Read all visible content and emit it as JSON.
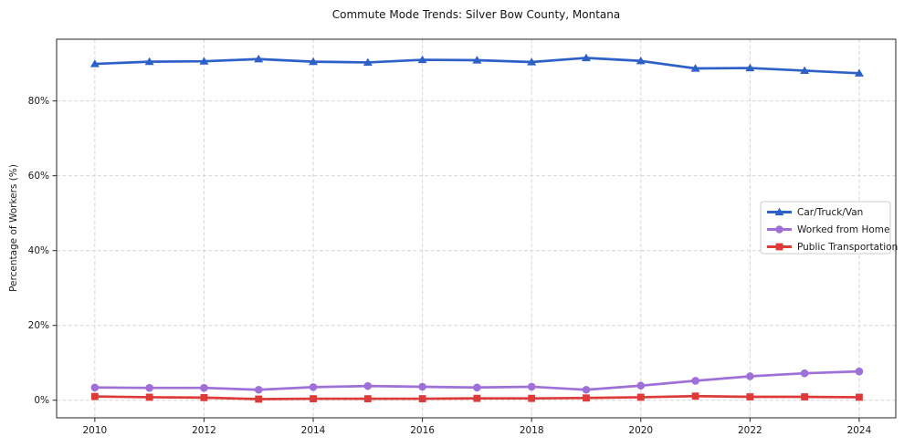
{
  "title": "Commute Mode Trends: Silver Bow County, Montana",
  "colors": {
    "car_truck_van": "#2d61c8",
    "worked_from_home": "#9e70d8",
    "public_transportation": "#dd3a3a",
    "grid": "#d6d6d6",
    "spine": "#262626",
    "legend_border": "#cccccc",
    "background": "#ffffff"
  },
  "chart_data": {
    "type": "line",
    "title": "Commute Mode Trends: Silver Bow County, Montana",
    "xlabel": "",
    "ylabel": "Percentage of Workers (%)",
    "x": [
      2010,
      2011,
      2012,
      2013,
      2014,
      2015,
      2016,
      2017,
      2018,
      2019,
      2020,
      2021,
      2022,
      2023,
      2024
    ],
    "series": [
      {
        "name": "Car/Truck/Van",
        "color": "#2d61c8",
        "marker": "triangle",
        "values": [
          89.9,
          90.5,
          90.6,
          91.2,
          90.5,
          90.3,
          91.0,
          90.9,
          90.4,
          91.5,
          90.7,
          88.7,
          88.8,
          88.1,
          87.4
        ]
      },
      {
        "name": "Worked from Home",
        "color": "#9e70d8",
        "marker": "circle",
        "values": [
          3.4,
          3.3,
          3.3,
          2.8,
          3.5,
          3.8,
          3.6,
          3.4,
          3.6,
          2.8,
          3.9,
          5.2,
          6.4,
          7.2,
          7.7
        ]
      },
      {
        "name": "Public Transportation",
        "color": "#dd3a3a",
        "marker": "square",
        "values": [
          1.0,
          0.8,
          0.7,
          0.3,
          0.4,
          0.4,
          0.4,
          0.5,
          0.5,
          0.6,
          0.8,
          1.1,
          0.9,
          0.9,
          0.8
        ]
      }
    ],
    "xticks": [
      2010,
      2012,
      2014,
      2016,
      2018,
      2020,
      2022,
      2024
    ],
    "xtick_labels": [
      "2010",
      "2012",
      "2014",
      "2016",
      "2018",
      "2020",
      "2022",
      "2024"
    ],
    "yticks": [
      0,
      20,
      40,
      60,
      80
    ],
    "ytick_labels": [
      "0%",
      "20%",
      "40%",
      "60%",
      "80%"
    ],
    "xlim": [
      2009.3,
      2024.67
    ],
    "ylim": [
      -4.7,
      96.5
    ],
    "grid": true,
    "legend_position": "center-right"
  }
}
